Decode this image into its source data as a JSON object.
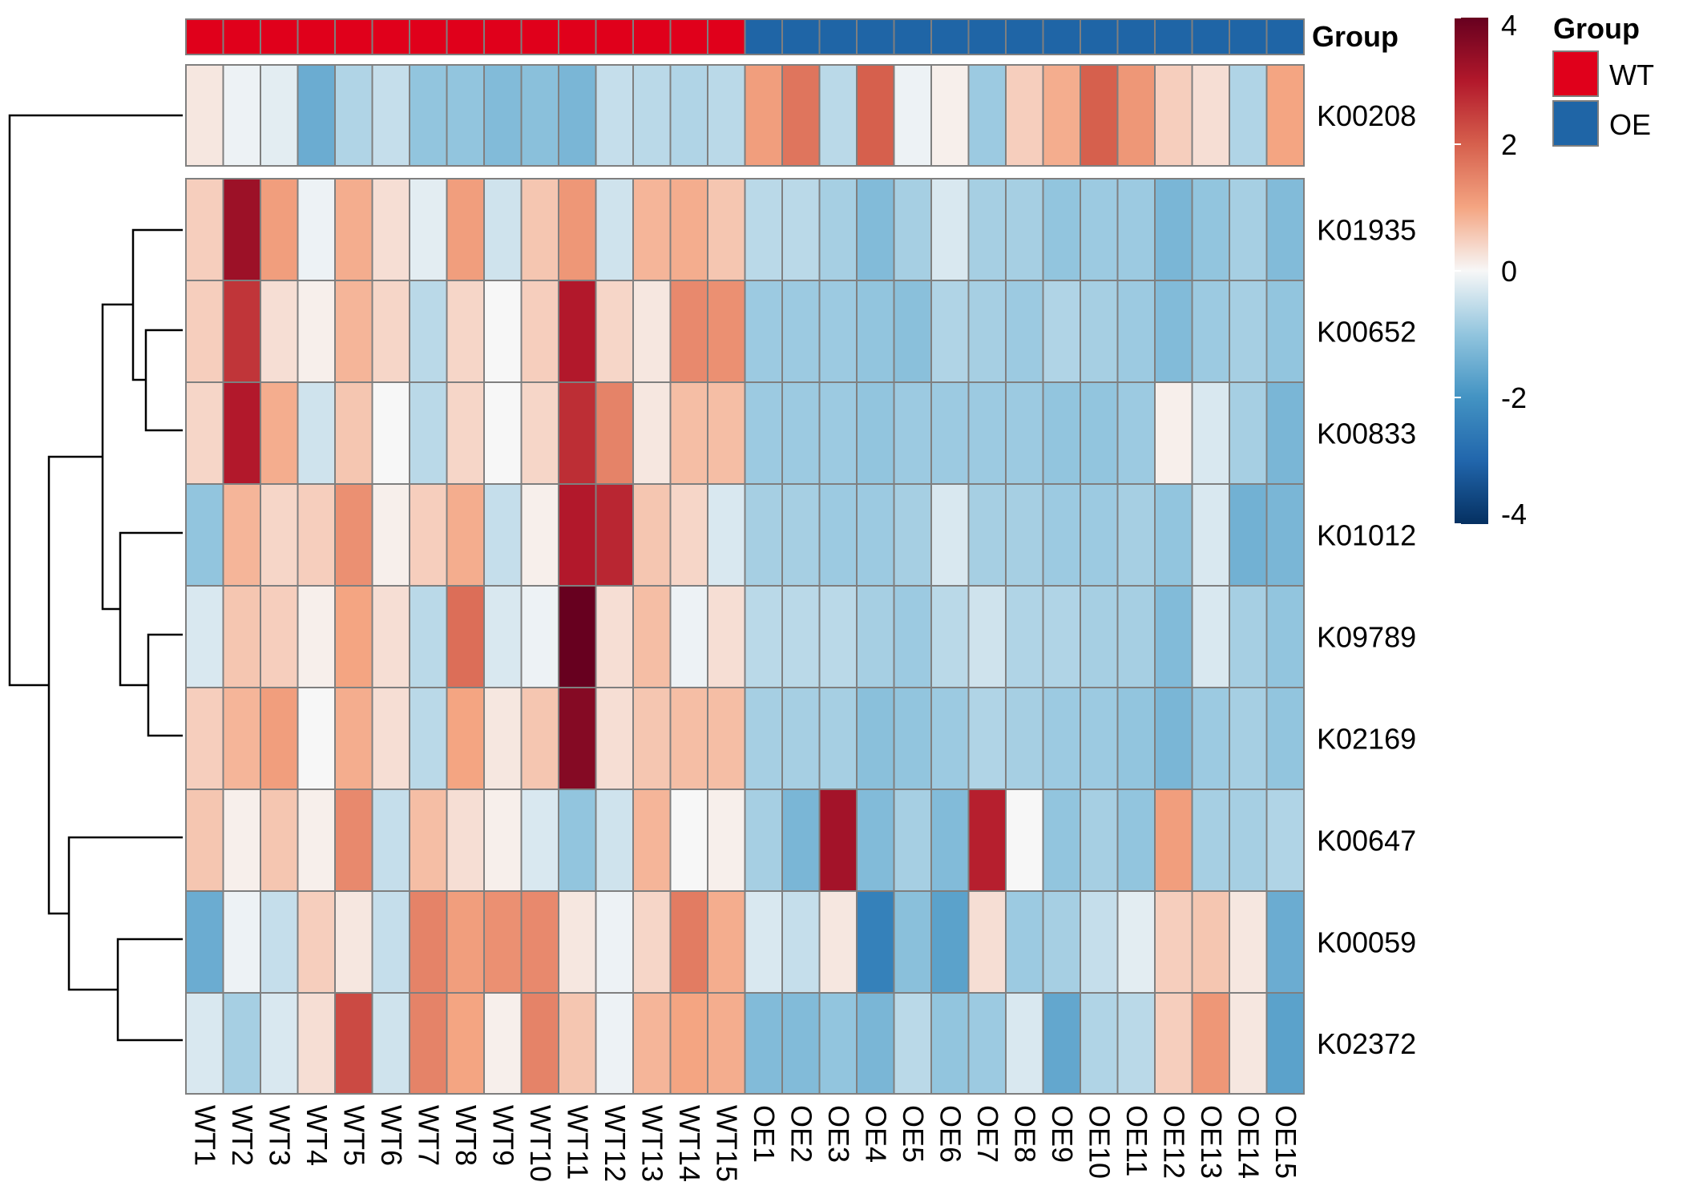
{
  "chart_data": {
    "type": "heatmap",
    "annotation_title": "Group",
    "legend": {
      "title": "Group",
      "placement": "top-right",
      "entries": [
        "WT",
        "OE"
      ]
    },
    "group_colors": {
      "WT": "#E0001B",
      "OE": "#1F65A6"
    },
    "colorbar": {
      "range": [
        -4,
        4
      ],
      "ticks": [
        4,
        2,
        0,
        -2,
        -4
      ],
      "tick_labels": [
        "4",
        "2",
        "0",
        "-2",
        "-4"
      ]
    },
    "columns": [
      "WT1",
      "WT2",
      "WT3",
      "WT4",
      "WT5",
      "WT6",
      "WT7",
      "WT8",
      "WT9",
      "WT10",
      "WT11",
      "WT12",
      "WT13",
      "WT14",
      "WT15",
      "OE1",
      "OE2",
      "OE3",
      "OE4",
      "OE5",
      "OE6",
      "OE7",
      "OE8",
      "OE9",
      "OE10",
      "OE11",
      "OE12",
      "OE13",
      "OE14",
      "OE15"
    ],
    "column_groups": [
      "WT",
      "WT",
      "WT",
      "WT",
      "WT",
      "WT",
      "WT",
      "WT",
      "WT",
      "WT",
      "WT",
      "WT",
      "WT",
      "WT",
      "WT",
      "OE",
      "OE",
      "OE",
      "OE",
      "OE",
      "OE",
      "OE",
      "OE",
      "OE",
      "OE",
      "OE",
      "OE",
      "OE",
      "OE",
      "OE"
    ],
    "rows": [
      "K00208",
      "K01935",
      "K00652",
      "K00833",
      "K01012",
      "K09789",
      "K02169",
      "K00647",
      "K00059",
      "K02372"
    ],
    "values": [
      [
        0.2,
        -0.1,
        -0.2,
        -1.5,
        -0.7,
        -0.5,
        -1.0,
        -1.0,
        -1.2,
        -1.1,
        -1.3,
        -0.5,
        -0.6,
        -0.7,
        -0.6,
        1.1,
        1.7,
        -0.6,
        2.0,
        -0.1,
        0.1,
        -0.9,
        0.5,
        0.9,
        2.0,
        1.2,
        0.5,
        0.3,
        -0.7,
        1.0
      ],
      [
        0.5,
        3.3,
        1.1,
        -0.1,
        0.9,
        0.3,
        -0.2,
        1.1,
        -0.4,
        0.6,
        1.2,
        -0.4,
        0.8,
        0.9,
        0.6,
        -0.6,
        -0.6,
        -0.8,
        -1.2,
        -0.8,
        -0.3,
        -0.8,
        -0.8,
        -1.0,
        -0.9,
        -0.9,
        -1.3,
        -1.0,
        -0.8,
        -1.2
      ],
      [
        0.5,
        2.6,
        0.3,
        0.1,
        0.8,
        0.4,
        -0.6,
        0.4,
        0.0,
        0.5,
        3.0,
        0.4,
        0.2,
        1.4,
        1.3,
        -0.9,
        -0.9,
        -0.9,
        -1.0,
        -1.1,
        -0.7,
        -0.8,
        -0.9,
        -0.7,
        -0.8,
        -0.9,
        -1.2,
        -0.9,
        -0.8,
        -1.0
      ],
      [
        0.4,
        3.0,
        0.9,
        -0.4,
        0.6,
        0.0,
        -0.6,
        0.4,
        0.0,
        0.4,
        2.7,
        1.5,
        0.2,
        0.7,
        0.7,
        -0.9,
        -0.9,
        -0.9,
        -1.0,
        -0.9,
        -0.9,
        -0.9,
        -0.9,
        -1.0,
        -1.0,
        -0.9,
        0.1,
        -0.3,
        -0.8,
        -1.3
      ],
      [
        -1.0,
        0.8,
        0.4,
        0.5,
        1.3,
        0.1,
        0.5,
        0.9,
        -0.5,
        0.1,
        3.0,
        2.8,
        0.6,
        0.4,
        -0.3,
        -0.8,
        -0.8,
        -0.9,
        -0.9,
        -0.8,
        -0.3,
        -0.8,
        -0.8,
        -0.9,
        -0.9,
        -0.8,
        -1.0,
        -0.3,
        -1.4,
        -1.3
      ],
      [
        -0.3,
        0.6,
        0.5,
        0.1,
        1.0,
        0.3,
        -0.6,
        1.8,
        -0.3,
        -0.1,
        4.0,
        0.3,
        0.7,
        -0.1,
        0.3,
        -0.6,
        -0.6,
        -0.6,
        -0.8,
        -0.9,
        -0.6,
        -0.4,
        -0.7,
        -0.7,
        -0.8,
        -0.8,
        -1.2,
        -0.3,
        -0.8,
        -1.0
      ],
      [
        0.5,
        0.8,
        1.1,
        0.0,
        0.9,
        0.3,
        -0.6,
        1.0,
        0.2,
        0.6,
        3.6,
        0.3,
        0.6,
        0.7,
        0.7,
        -0.8,
        -0.8,
        -0.8,
        -1.1,
        -1.0,
        -0.9,
        -0.7,
        -0.8,
        -0.9,
        -0.9,
        -1.0,
        -1.3,
        -0.9,
        -0.8,
        -1.0
      ],
      [
        0.6,
        0.1,
        0.6,
        0.1,
        1.4,
        -0.5,
        0.7,
        0.3,
        0.1,
        -0.3,
        -1.0,
        -0.4,
        0.8,
        0.0,
        0.1,
        -0.8,
        -1.3,
        3.2,
        -1.2,
        -0.8,
        -1.2,
        2.9,
        0.0,
        -1.0,
        -0.8,
        -1.0,
        1.1,
        -0.8,
        -0.8,
        -0.7
      ],
      [
        -1.5,
        -0.1,
        -0.5,
        0.5,
        0.2,
        -0.5,
        1.5,
        1.1,
        1.3,
        1.4,
        0.2,
        -0.1,
        0.4,
        1.6,
        0.9,
        -0.3,
        -0.5,
        0.2,
        -2.4,
        -1.1,
        -1.7,
        0.3,
        -0.9,
        -0.8,
        -0.5,
        -0.2,
        0.5,
        0.6,
        0.2,
        -1.5
      ],
      [
        -0.3,
        -0.8,
        -0.3,
        0.3,
        2.3,
        -0.4,
        1.5,
        1.0,
        0.1,
        1.5,
        0.6,
        -0.1,
        0.8,
        1.0,
        0.9,
        -1.2,
        -1.2,
        -1.0,
        -1.3,
        -0.6,
        -1.0,
        -0.9,
        -0.3,
        -1.6,
        -0.7,
        -0.6,
        0.5,
        1.2,
        0.2,
        -1.7
      ]
    ]
  }
}
